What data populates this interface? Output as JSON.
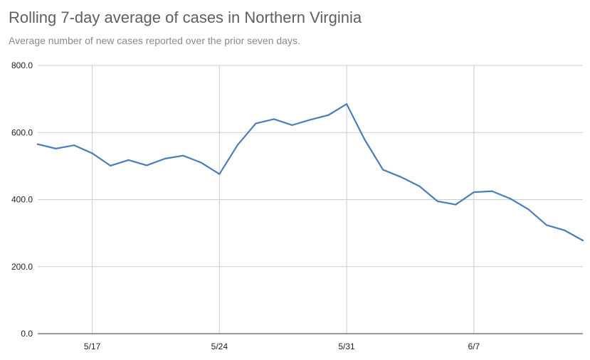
{
  "header": {
    "title": "Rolling 7-day average of cases in Northern Virginia",
    "subtitle": "Average number of new cases reported over the prior seven days."
  },
  "colors": {
    "line": "#4a7ebb",
    "gridline": "#cccccc",
    "axis": "#333333",
    "title": "#5f5f5f",
    "subtitle": "#8a8a8a"
  },
  "chart_data": {
    "type": "line",
    "title": "Rolling 7-day average of cases in Northern Virginia",
    "subtitle": "Average number of new cases reported over the prior seven days.",
    "xlabel": "",
    "ylabel": "",
    "x": [
      "5/14",
      "5/15",
      "5/16",
      "5/17",
      "5/18",
      "5/19",
      "5/20",
      "5/21",
      "5/22",
      "5/23",
      "5/24",
      "5/25",
      "5/26",
      "5/27",
      "5/28",
      "5/29",
      "5/30",
      "5/31",
      "6/1",
      "6/2",
      "6/3",
      "6/4",
      "6/5",
      "6/6",
      "6/7",
      "6/8",
      "6/9",
      "6/10",
      "6/11",
      "6/12",
      "6/13"
    ],
    "series": [
      {
        "values": [
          565,
          552,
          562,
          538,
          501,
          518,
          502,
          522,
          531,
          510,
          476,
          563,
          627,
          640,
          622,
          638,
          652,
          685,
          578,
          489,
          467,
          440,
          395,
          385,
          422,
          425,
          403,
          371,
          324,
          308,
          278
        ]
      }
    ],
    "ylim": [
      0,
      800
    ],
    "yticks": [
      "0.0",
      "200.0",
      "400.0",
      "600.0",
      "800.0"
    ],
    "xticks": [
      "5/17",
      "5/24",
      "5/31",
      "6/7"
    ],
    "grid": true,
    "legend": "none"
  }
}
